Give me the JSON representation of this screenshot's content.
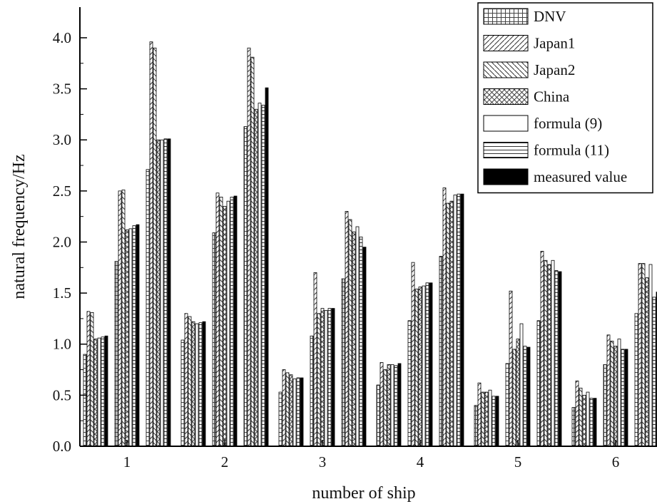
{
  "chart_data": {
    "type": "bar",
    "title": "",
    "xlabel": "number of ship",
    "ylabel": "natural frequency/Hz",
    "categories": [
      "1",
      "2",
      "3",
      "4",
      "5",
      "6"
    ],
    "ylim": [
      0,
      4.3
    ],
    "yticks": [
      0.0,
      0.5,
      1.0,
      1.5,
      2.0,
      2.5,
      3.0,
      3.5,
      4.0
    ],
    "ytick_labels": [
      "0.0",
      "0.5",
      "1.0",
      "1.5",
      "2.0",
      "2.5",
      "3.0",
      "3.5",
      "4.0"
    ],
    "grid": false,
    "legend_position": "top-right",
    "bar_groups_per_category": 3,
    "series": [
      {
        "name": "DNV",
        "pattern": "horizontal-vertical-grid",
        "values": [
          [
            0.9,
            1.81,
            2.71
          ],
          [
            1.04,
            2.09,
            3.13
          ],
          [
            0.53,
            1.08,
            1.64
          ],
          [
            0.6,
            1.23,
            1.86
          ],
          [
            0.4,
            0.81,
            1.23
          ],
          [
            0.38,
            0.8,
            1.3
          ]
        ]
      },
      {
        "name": "Japan1",
        "pattern": "diagonal-up",
        "values": [
          [
            1.32,
            2.5,
            3.96
          ],
          [
            1.3,
            2.48,
            3.9
          ],
          [
            0.75,
            1.7,
            2.3
          ],
          [
            0.82,
            1.8,
            2.53
          ],
          [
            0.62,
            1.52,
            1.91
          ],
          [
            0.64,
            1.09,
            1.79
          ]
        ]
      },
      {
        "name": "Japan2",
        "pattern": "diagonal-down",
        "values": [
          [
            1.31,
            2.51,
            3.9
          ],
          [
            1.27,
            2.44,
            3.81
          ],
          [
            0.72,
            1.3,
            2.22
          ],
          [
            0.75,
            1.54,
            2.38
          ],
          [
            0.53,
            0.95,
            1.82
          ],
          [
            0.57,
            1.03,
            1.79
          ]
        ]
      },
      {
        "name": "China",
        "pattern": "crosshatch",
        "values": [
          [
            1.05,
            2.12,
            3.0
          ],
          [
            1.22,
            2.35,
            3.3
          ],
          [
            0.7,
            1.35,
            2.1
          ],
          [
            0.8,
            1.56,
            2.4
          ],
          [
            0.53,
            1.05,
            1.78
          ],
          [
            0.5,
            0.98,
            1.65
          ]
        ]
      },
      {
        "name": "formula (9)",
        "pattern": "blank",
        "values": [
          [
            1.06,
            2.13,
            3.0
          ],
          [
            1.2,
            2.4,
            3.36
          ],
          [
            0.66,
            1.33,
            2.15
          ],
          [
            0.8,
            1.57,
            2.46
          ],
          [
            0.55,
            1.2,
            1.82
          ],
          [
            0.53,
            1.05,
            1.78
          ]
        ]
      },
      {
        "name": "formula (11)",
        "pattern": "horizontal-lines",
        "values": [
          [
            1.07,
            2.16,
            3.01
          ],
          [
            1.21,
            2.44,
            3.34
          ],
          [
            0.67,
            1.35,
            2.05
          ],
          [
            0.79,
            1.6,
            2.47
          ],
          [
            0.49,
            0.98,
            1.72
          ],
          [
            0.47,
            0.95,
            1.46
          ]
        ]
      },
      {
        "name": "measured value",
        "pattern": "solid-black",
        "values": [
          [
            1.08,
            2.17,
            3.01
          ],
          [
            1.22,
            2.45,
            3.51
          ],
          [
            0.67,
            1.35,
            1.95
          ],
          [
            0.81,
            1.6,
            2.47
          ],
          [
            0.49,
            0.97,
            1.71
          ],
          [
            0.47,
            0.95,
            1.51
          ]
        ]
      }
    ]
  }
}
